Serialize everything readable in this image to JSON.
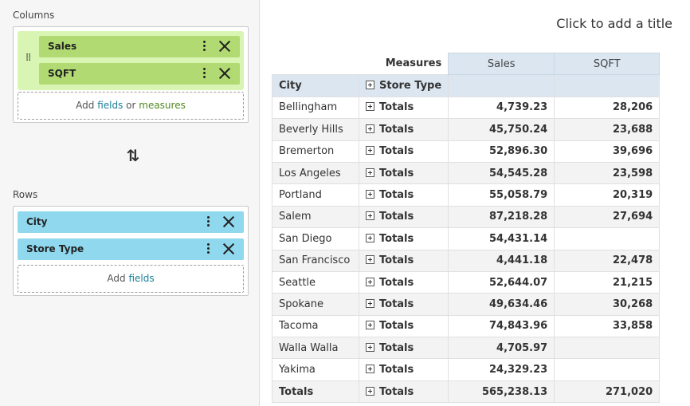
{
  "left": {
    "columns_label": "Columns",
    "rows_label": "Rows",
    "column_chips": [
      {
        "label": "Sales"
      },
      {
        "label": "SQFT"
      }
    ],
    "row_chips": [
      {
        "label": "City"
      },
      {
        "label": "Store Type"
      }
    ],
    "columns_add": {
      "prefix": "Add ",
      "fields": "fields",
      "or": " or ",
      "measures": "measures"
    },
    "rows_add": {
      "prefix": "Add ",
      "fields": "fields"
    },
    "swap_icon": "swap-vertical-icon"
  },
  "right": {
    "title_placeholder": "Click to add a title",
    "pivot": {
      "measures_label": "Measures",
      "measure_headers": [
        "Sales",
        "SQFT"
      ],
      "dim_headers": [
        "City",
        "Store Type"
      ],
      "rows": [
        {
          "city": "Bellingham",
          "type": "Totals",
          "sales": "4,739.23",
          "sqft": "28,206"
        },
        {
          "city": "Beverly Hills",
          "type": "Totals",
          "sales": "45,750.24",
          "sqft": "23,688"
        },
        {
          "city": "Bremerton",
          "type": "Totals",
          "sales": "52,896.30",
          "sqft": "39,696"
        },
        {
          "city": "Los Angeles",
          "type": "Totals",
          "sales": "54,545.28",
          "sqft": "23,598"
        },
        {
          "city": "Portland",
          "type": "Totals",
          "sales": "55,058.79",
          "sqft": "20,319"
        },
        {
          "city": "Salem",
          "type": "Totals",
          "sales": "87,218.28",
          "sqft": "27,694"
        },
        {
          "city": "San Diego",
          "type": "Totals",
          "sales": "54,431.14",
          "sqft": ""
        },
        {
          "city": "San Francisco",
          "type": "Totals",
          "sales": "4,441.18",
          "sqft": "22,478"
        },
        {
          "city": "Seattle",
          "type": "Totals",
          "sales": "52,644.07",
          "sqft": "21,215"
        },
        {
          "city": "Spokane",
          "type": "Totals",
          "sales": "49,634.46",
          "sqft": "30,268"
        },
        {
          "city": "Tacoma",
          "type": "Totals",
          "sales": "74,843.96",
          "sqft": "33,858"
        },
        {
          "city": "Walla Walla",
          "type": "Totals",
          "sales": "4,705.97",
          "sqft": ""
        },
        {
          "city": "Yakima",
          "type": "Totals",
          "sales": "24,329.23",
          "sqft": ""
        }
      ],
      "grand_total": {
        "city": "Totals",
        "type": "Totals",
        "sales": "565,238.13",
        "sqft": "271,020"
      }
    }
  }
}
